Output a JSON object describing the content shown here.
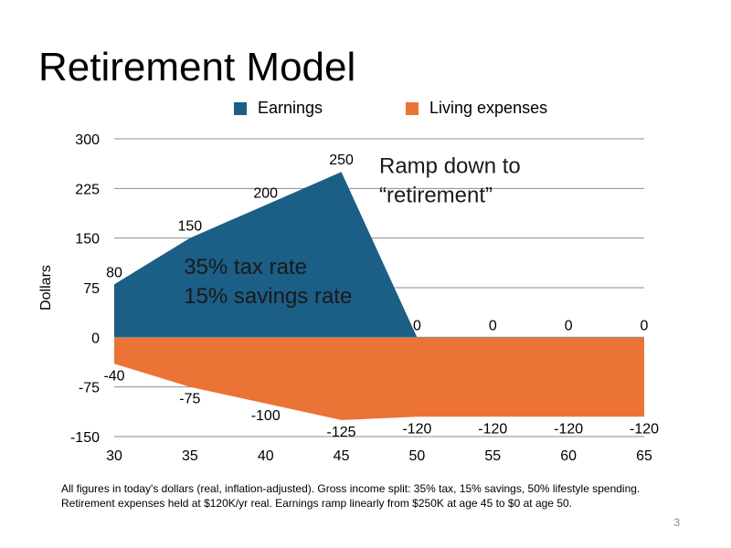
{
  "slide": {
    "title": "Retirement Model",
    "page_number": "3",
    "footnote_lines": [
      "All figures in today's dollars (real, inflation-adjusted). Gross income split: 35% tax, 15% savings, 50% lifestyle spending.",
      "Retirement expenses held at $120K/yr real. Earnings ramp linearly from $250K at age 45 to $0 at age 50."
    ]
  },
  "chart_data": {
    "type": "area",
    "title": "",
    "xlabel": "",
    "ylabel": "Dollars",
    "x": [
      30,
      35,
      40,
      45,
      50,
      55,
      60,
      65
    ],
    "xlim": [
      30,
      65
    ],
    "ylim": [
      -150,
      300
    ],
    "yticks": [
      -150,
      -75,
      0,
      75,
      150,
      225,
      300
    ],
    "grid": true,
    "legend_position": "top",
    "series": [
      {
        "name": "Earnings",
        "color": "#1b5e86",
        "values": [
          80,
          150,
          200,
          250,
          0,
          0,
          0,
          0
        ]
      },
      {
        "name": "Living expenses",
        "color": "#ea7335",
        "values": [
          -40,
          -75,
          -100,
          -125,
          -120,
          -120,
          -120,
          -120
        ]
      }
    ],
    "annotations": [
      {
        "lines": [
          "Ramp down to",
          "“retirement”"
        ],
        "x": 47.5,
        "y": 248
      },
      {
        "lines": [
          "35% tax rate",
          "15% savings rate"
        ],
        "x": 34.6,
        "y": 96
      }
    ]
  }
}
